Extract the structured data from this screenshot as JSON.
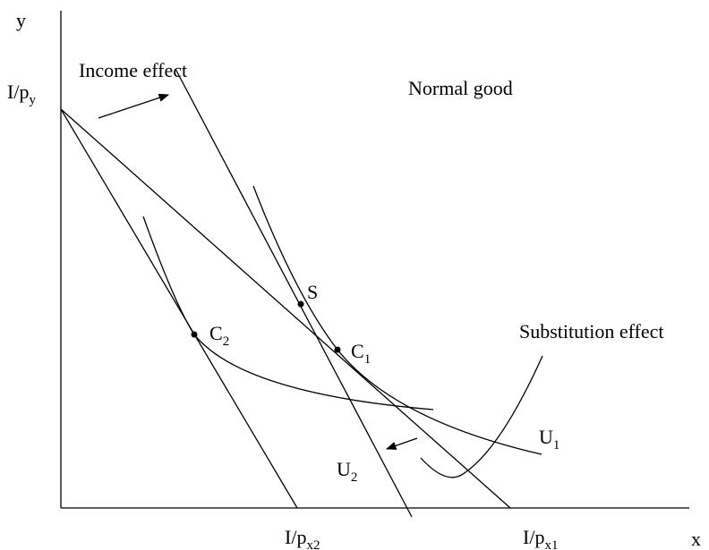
{
  "axes": {
    "y": "y",
    "x": "x"
  },
  "labels": {
    "y_intercept": {
      "text": "I/p",
      "sub": "y"
    },
    "x_intercept_2": {
      "text": "I/p",
      "sub": "x2"
    },
    "x_intercept_1": {
      "text": "I/p",
      "sub": "x1"
    },
    "income_effect": "Income effect",
    "normal_good": "Normal good",
    "substitution_effect": "Substitution effect",
    "s": "S",
    "c2": {
      "text": "C",
      "sub": "2"
    },
    "c1": {
      "text": "C",
      "sub": "1"
    },
    "u1": {
      "text": "U",
      "sub": "1"
    },
    "u2": {
      "text": "U",
      "sub": "2"
    }
  }
}
